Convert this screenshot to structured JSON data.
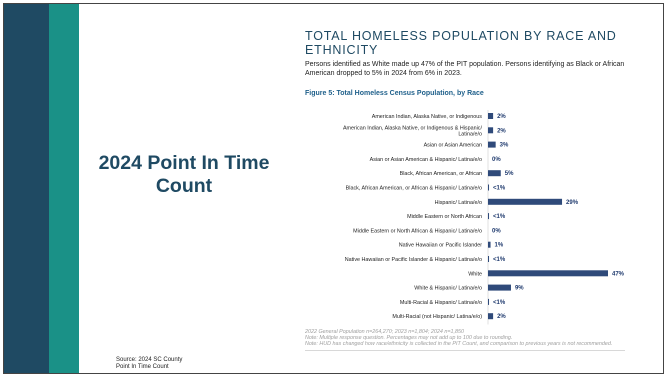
{
  "slide": {
    "left_title": "2024 Point In Time Count",
    "source": [
      "Source: 2024 SC County",
      "Point In Time Count"
    ],
    "heading": "TOTAL HOMELESS POPULATION BY RACE AND ETHNICITY",
    "description": "Persons identified as White made up 47% of the PIT population. Persons identifying as Black or African American dropped to 5% in 2024 from 6% in 2023.",
    "figure_title": "Figure 5: Total Homeless Census Population, by Race",
    "footnotes": [
      "2022 General Population n=264,270; 2023 n=1,804; 2024 n=1,850",
      "Note: Multiple response question. Percentages may not add up to 100 due to rounding.",
      "Note: HUD has changed how race/ethnicity is collected in the PIT Count, and comparison to previous years is not recommended."
    ]
  },
  "colors": {
    "dark_band": "#1f4a63",
    "teal_band": "#1a9187",
    "bar": "#2f4a7a",
    "label_value": "#1f3a6e"
  },
  "chart_data": {
    "type": "bar",
    "orientation": "horizontal",
    "title": "Figure 5: Total Homeless Census Population, by Race",
    "xlim": [
      0,
      47
    ],
    "categories": [
      "American Indian, Alaska Native, or Indigenous",
      "American Indian, Alaska Native, or Indigenous & Hispanic/ Latina/e/o",
      "Asian or Asian American",
      "Asian or Asian American & Hispanic/ Latina/e/o",
      "Black, African American, or African",
      "Black, African American, or African & Hispanic/ Latina/e/o",
      "Hispanic/ Latina/e/o",
      "Middle Eastern or North African",
      "Middle Eastern or North African & Hispanic/ Latina/e/o",
      "Native Hawaiian or Pacific Islander",
      "Native Hawaiian or Pacific Islander & Hispanic/ Latina/e/o",
      "White",
      "White & Hispanic/ Latina/e/o",
      "Multi-Racial & Hispanic/ Latina/e/o",
      "Multi-Racial (not Hispanic/ Latina/e/o)"
    ],
    "values": [
      2,
      2,
      3,
      0,
      5,
      0.4,
      29,
      0.4,
      0,
      1,
      0.4,
      47,
      9,
      0.4,
      2
    ],
    "value_labels": [
      "2%",
      "2%",
      "3%",
      "0%",
      "5%",
      "<1%",
      "29%",
      "<1%",
      "0%",
      "1%",
      "<1%",
      "47%",
      "9%",
      "<1%",
      "2%"
    ]
  }
}
